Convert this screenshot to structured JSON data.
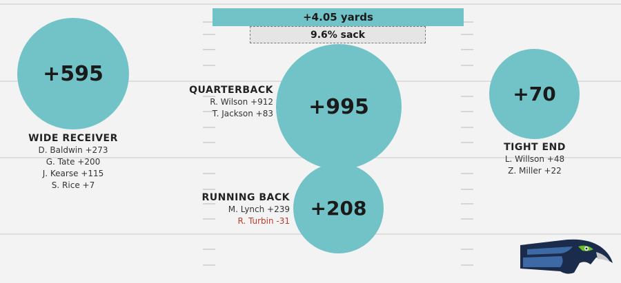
{
  "banners": {
    "yards": "+4.05 yards",
    "sack": "9.6% sack"
  },
  "positions": {
    "wide_receiver": {
      "label": "WIDE RECEIVER",
      "total": "+595",
      "players": [
        "D. Baldwin +273",
        "G. Tate +200",
        "J. Kearse +115",
        "S. Rice +7"
      ]
    },
    "quarterback": {
      "label": "QUARTERBACK",
      "total": "+995",
      "players": [
        "R. Wilson +912",
        "T. Jackson +83"
      ]
    },
    "running_back": {
      "label": "RUNNING BACK",
      "total": "+208",
      "players": [
        "M. Lynch +239",
        "R. Turbin -31"
      ]
    },
    "tight_end": {
      "label": "TIGHT END",
      "total": "+70",
      "players": [
        "L. Willson +48",
        "Z. Miller +22"
      ]
    }
  },
  "colors": {
    "bubble": "#72c3c7",
    "negative": "#c0392b",
    "logo_navy": "#1b2b4b",
    "logo_green": "#69be28",
    "logo_blue": "#3d6aa4"
  },
  "logo": "seahawks-logo"
}
